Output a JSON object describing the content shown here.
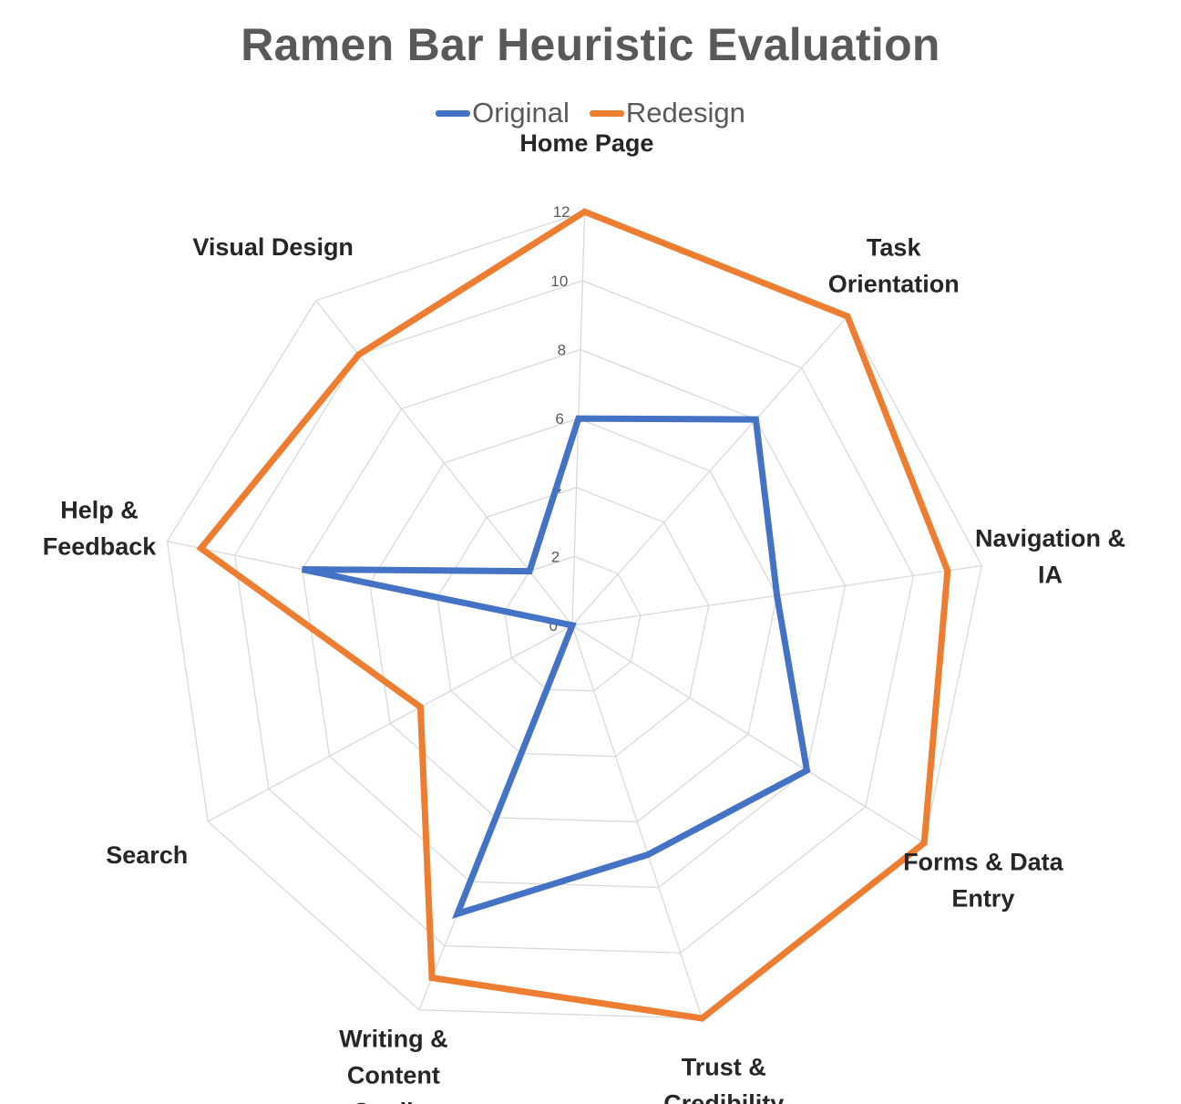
{
  "chart_data": {
    "type": "radar",
    "title": "Ramen Bar Heuristic Evaluation",
    "categories": [
      [
        "Home Page"
      ],
      [
        "Task",
        "Orientation"
      ],
      [
        "Navigation &",
        "IA"
      ],
      [
        "Forms & Data",
        "Entry"
      ],
      [
        "Trust &",
        "Credibility"
      ],
      [
        "Writing &",
        "Content",
        "Quality"
      ],
      [
        "Search"
      ],
      [
        "Help &",
        "Feedback"
      ],
      [
        "Visual Design"
      ]
    ],
    "radial_ticks": [
      "0",
      "2",
      "4",
      "6",
      "8",
      "10",
      "12"
    ],
    "rlim": [
      0,
      12
    ],
    "legend_position": "top",
    "grid": true,
    "series": [
      {
        "name": "Original",
        "color": "#4472C4",
        "values": [
          6,
          8,
          6,
          8,
          7,
          9,
          0,
          8,
          2
        ]
      },
      {
        "name": "Redesign",
        "color": "#ED7D31",
        "values": [
          12,
          12,
          11,
          12,
          12,
          11,
          5,
          11,
          10
        ]
      }
    ]
  }
}
